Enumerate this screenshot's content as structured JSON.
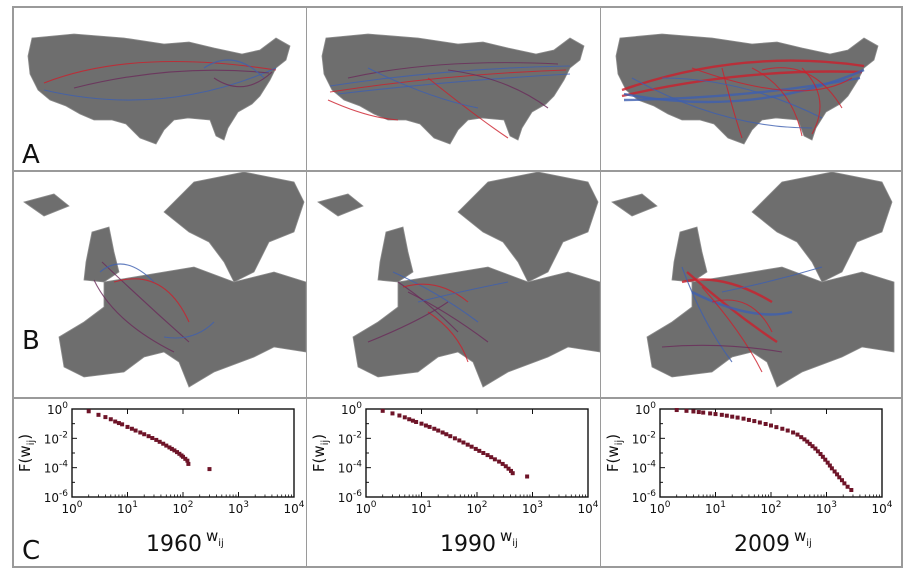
{
  "rows": {
    "a": {
      "label": "A"
    },
    "b": {
      "label": "B"
    },
    "c": {
      "label": "C"
    }
  },
  "colors": {
    "land": "#6e6e6e",
    "border": "#8c8c8c",
    "red_routes": "#cc1f2c",
    "blue_routes": "#3d5fb0",
    "purple_routes": "#6a2a5a",
    "marker": "#6e1428",
    "frame": "#9a9a9a"
  },
  "chart_data": [
    {
      "type": "scatter",
      "title": "1960",
      "xlabel": "w_ij",
      "ylabel": "F(w_ij)",
      "xscale": "log",
      "yscale": "log",
      "xlim": [
        1,
        10000
      ],
      "ylim": [
        1e-06,
        1
      ],
      "xticks": [
        1,
        10,
        100,
        1000,
        10000
      ],
      "yticks": [
        1,
        0.01,
        0.0001,
        1e-06
      ],
      "x": [
        2,
        3,
        4,
        5,
        6,
        7,
        8,
        10,
        12,
        14,
        17,
        20,
        24,
        28,
        33,
        38,
        44,
        50,
        57,
        63,
        70,
        78,
        86,
        94,
        100,
        110,
        120,
        125,
        300
      ],
      "y": [
        0.7,
        0.4,
        0.28,
        0.2,
        0.14,
        0.11,
        0.09,
        0.06,
        0.045,
        0.034,
        0.025,
        0.019,
        0.014,
        0.0105,
        0.0078,
        0.0058,
        0.0043,
        0.0032,
        0.0024,
        0.0019,
        0.0015,
        0.00115,
        0.00088,
        0.00068,
        0.00055,
        0.0004,
        0.0003,
        0.00018,
        8e-05
      ]
    },
    {
      "type": "scatter",
      "title": "1990",
      "xlabel": "w_ij",
      "ylabel": "F(w_ij)",
      "xscale": "log",
      "yscale": "log",
      "xlim": [
        1,
        10000
      ],
      "ylim": [
        1e-06,
        1
      ],
      "xticks": [
        1,
        10,
        100,
        1000,
        10000
      ],
      "yticks": [
        1,
        0.01,
        0.0001,
        1e-06
      ],
      "x": [
        2,
        3,
        4,
        5,
        6,
        7,
        8,
        10,
        12,
        14,
        17,
        20,
        24,
        28,
        33,
        40,
        48,
        57,
        68,
        80,
        95,
        110,
        130,
        155,
        180,
        210,
        250,
        290,
        330,
        370,
        410,
        440,
        800
      ],
      "y": [
        0.75,
        0.5,
        0.36,
        0.27,
        0.2,
        0.16,
        0.13,
        0.1,
        0.075,
        0.06,
        0.045,
        0.034,
        0.025,
        0.019,
        0.014,
        0.01,
        0.0072,
        0.0052,
        0.0037,
        0.0027,
        0.0019,
        0.0014,
        0.001,
        0.00072,
        0.00052,
        0.00037,
        0.00026,
        0.00018,
        0.000125,
        8.5e-05,
        6e-05,
        4.2e-05,
        2.5e-05
      ]
    },
    {
      "type": "scatter",
      "title": "2009",
      "xlabel": "w_ij",
      "ylabel": "F(w_ij)",
      "xscale": "log",
      "yscale": "log",
      "xlim": [
        1,
        10000
      ],
      "ylim": [
        1e-06,
        1
      ],
      "xticks": [
        1,
        10,
        100,
        1000,
        10000
      ],
      "yticks": [
        1,
        0.01,
        0.0001,
        1e-06
      ],
      "x": [
        2,
        3,
        4,
        5,
        6,
        8,
        10,
        13,
        16,
        20,
        25,
        32,
        40,
        50,
        63,
        80,
        100,
        125,
        160,
        200,
        250,
        300,
        350,
        400,
        450,
        500,
        560,
        630,
        700,
        780,
        860,
        950,
        1050,
        1150,
        1250,
        1400,
        1550,
        1700,
        1900,
        2100,
        2400,
        2800
      ],
      "y": [
        0.85,
        0.75,
        0.68,
        0.62,
        0.57,
        0.5,
        0.45,
        0.4,
        0.35,
        0.3,
        0.26,
        0.22,
        0.18,
        0.15,
        0.12,
        0.095,
        0.075,
        0.058,
        0.045,
        0.034,
        0.025,
        0.018,
        0.012,
        0.0085,
        0.006,
        0.0042,
        0.0029,
        0.002,
        0.0013,
        0.00085,
        0.00055,
        0.00035,
        0.00022,
        0.00014,
        9e-05,
        5.5e-05,
        3.5e-05,
        2.2e-05,
        1.4e-05,
        8.5e-06,
        5e-06,
        3e-06
      ]
    }
  ]
}
